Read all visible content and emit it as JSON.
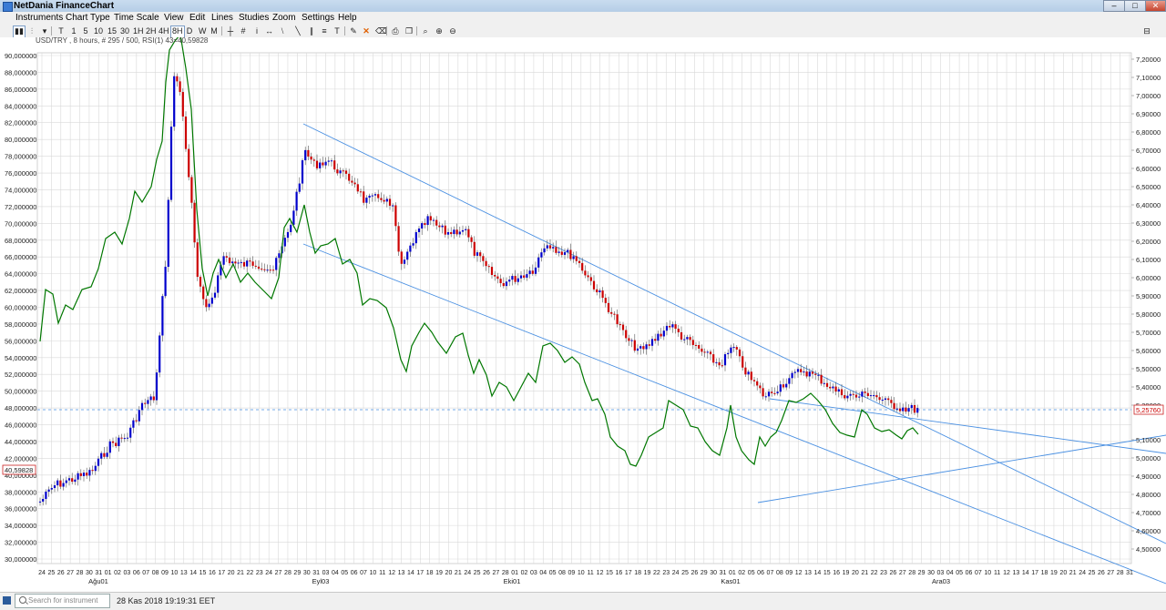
{
  "window": {
    "title": "NetDania FinanceChart",
    "minimize": "–",
    "maximize": "□",
    "close": "✕"
  },
  "menu": [
    "Instruments",
    "Chart Type",
    "Time Scale",
    "View",
    "Edit",
    "Lines",
    "Studies",
    "Zoom",
    "Settings",
    "Help"
  ],
  "toolbar": {
    "intervals": [
      "T",
      "1",
      "5",
      "10",
      "15",
      "30",
      "1H",
      "2H",
      "4H",
      "8H",
      "D",
      "W",
      "M"
    ],
    "active_interval": "8H"
  },
  "chart_info": "USD/TRY , 8 hours, # 295 / 500, RSI(1) 43=40,59828",
  "colors": {
    "up": "#0000cc",
    "down": "#cc0000",
    "rsi": "#007700",
    "trendline": "#4a90e2",
    "grid": "#d9d9d9"
  },
  "rsi_axis": {
    "labels": [
      "90,000000",
      "88,000000",
      "86,000000",
      "84,000000",
      "82,000000",
      "80,000000",
      "78,000000",
      "76,000000",
      "74,000000",
      "72,000000",
      "70,000000",
      "68,000000",
      "66,000000",
      "64,000000",
      "62,000000",
      "60,000000",
      "58,000000",
      "56,000000",
      "54,000000",
      "52,000000",
      "50,000000",
      "48,000000",
      "46,000000",
      "44,000000",
      "42,000000",
      "40,000000",
      "38,000000",
      "36,000000",
      "34,000000",
      "32,000000",
      "30,000000"
    ],
    "current": "40,59828"
  },
  "price_axis": {
    "labels": [
      "7,20000",
      "7,10000",
      "7,00000",
      "6,90000",
      "6,80000",
      "6,70000",
      "6,60000",
      "6,50000",
      "6,40000",
      "6,30000",
      "6,20000",
      "6,10000",
      "6,00000",
      "5,90000",
      "5,80000",
      "5,70000",
      "5,60000",
      "5,50000",
      "5,40000",
      "5,30000",
      "5,10000",
      "5,00000",
      "4,90000",
      "4,80000",
      "4,70000",
      "4,60000",
      "4,50000"
    ],
    "current": "5,25760"
  },
  "time_axis": {
    "days": [
      "24",
      "25",
      "26",
      "27",
      "28",
      "30",
      "31",
      "01",
      "02",
      "03",
      "06",
      "07",
      "08",
      "09",
      "10",
      "13",
      "14",
      "15",
      "16",
      "17",
      "20",
      "21",
      "22",
      "23",
      "24",
      "27",
      "28",
      "29",
      "30",
      "31",
      "03",
      "04",
      "05",
      "06",
      "07",
      "10",
      "11",
      "12",
      "13",
      "14",
      "17",
      "18",
      "19",
      "20",
      "21",
      "24",
      "25",
      "26",
      "27",
      "28",
      "01",
      "02",
      "03",
      "04",
      "05",
      "08",
      "09",
      "10",
      "11",
      "12",
      "15",
      "16",
      "17",
      "18",
      "19",
      "22",
      "23",
      "24",
      "25",
      "26",
      "29",
      "30",
      "31",
      "01",
      "02",
      "05",
      "06",
      "07",
      "08",
      "09",
      "12",
      "13",
      "14",
      "15",
      "16",
      "19",
      "20",
      "21",
      "22",
      "23",
      "26",
      "27",
      "28",
      "29",
      "30",
      "03",
      "04",
      "05",
      "06",
      "07",
      "10",
      "11",
      "12",
      "13",
      "14",
      "17",
      "18",
      "19",
      "20",
      "21",
      "24",
      "25",
      "26",
      "27",
      "28",
      "31"
    ],
    "months": [
      "Ağu01",
      "Eyl03",
      "Eki01",
      "Kas01",
      "Ara03"
    ]
  },
  "status": {
    "search_placeholder": "Search for instrument",
    "datetime": "28 Kas 2018 19:19:31 EET"
  }
}
